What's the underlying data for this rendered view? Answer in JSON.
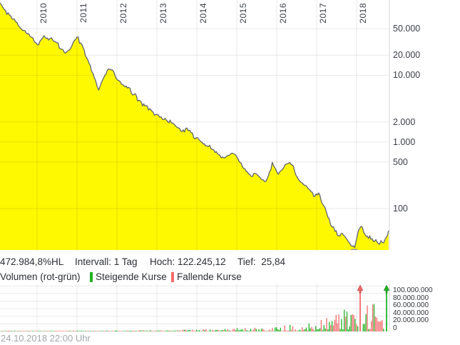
{
  "stats_bar": {
    "range": "472.984,8%HL",
    "interval": "Intervall: 1 Tag",
    "high": "Hoch: 122.245,12",
    "low": "Tief:  25,84"
  },
  "footer": {
    "timestamp": "24.10.2018 22:00 Uhr"
  },
  "chart_data": [
    {
      "type": "area",
      "name": "price",
      "y_scale": "log",
      "x_tick_labels": [
        "2010",
        "2011",
        "2012",
        "2013",
        "2014",
        "2015",
        "2016",
        "2017",
        "2018"
      ],
      "y_ticks": [
        {
          "label": "50.000",
          "value": 50000
        },
        {
          "label": "20.000",
          "value": 20000
        },
        {
          "label": "10.000",
          "value": 10000
        },
        {
          "label": "2.000",
          "value": 2000
        },
        {
          "label": "1.000",
          "value": 1000
        },
        {
          "label": "500",
          "value": 500
        },
        {
          "label": "100",
          "value": 100
        }
      ],
      "high": 122245.12,
      "low": 25.84,
      "interval": "1 Tag",
      "fill_color": "#fef800",
      "line_color": "#60656e",
      "points": [
        [
          2009.07,
          122245
        ],
        [
          2009.21,
          92800
        ],
        [
          2009.34,
          77700
        ],
        [
          2009.46,
          63800
        ],
        [
          2009.57,
          52400
        ],
        [
          2009.7,
          46300
        ],
        [
          2009.82,
          38900
        ],
        [
          2009.93,
          31900
        ],
        [
          2010.0,
          29100
        ],
        [
          2010.11,
          34600
        ],
        [
          2010.2,
          37400
        ],
        [
          2010.29,
          33800
        ],
        [
          2010.36,
          36500
        ],
        [
          2010.46,
          31900
        ],
        [
          2010.59,
          24900
        ],
        [
          2010.71,
          21500
        ],
        [
          2010.8,
          23700
        ],
        [
          2010.91,
          31900
        ],
        [
          2011.0,
          37400
        ],
        [
          2011.09,
          30500
        ],
        [
          2011.18,
          23700
        ],
        [
          2011.3,
          15200
        ],
        [
          2011.43,
          9300
        ],
        [
          2011.54,
          6000
        ],
        [
          2011.66,
          8900
        ],
        [
          2011.79,
          12500
        ],
        [
          2011.89,
          12000
        ],
        [
          2012.02,
          8450
        ],
        [
          2012.14,
          7270
        ],
        [
          2012.29,
          6600
        ],
        [
          2012.43,
          5160
        ],
        [
          2012.55,
          4230
        ],
        [
          2012.7,
          3470
        ],
        [
          2012.82,
          3150
        ],
        [
          2012.91,
          2780
        ],
        [
          2013.0,
          2590
        ],
        [
          2013.14,
          2180
        ],
        [
          2013.27,
          2030
        ],
        [
          2013.36,
          1930
        ],
        [
          2013.5,
          1660
        ],
        [
          2013.63,
          1430
        ],
        [
          2013.75,
          1620
        ],
        [
          2013.86,
          1370
        ],
        [
          2013.98,
          1150
        ],
        [
          2014.13,
          990
        ],
        [
          2014.25,
          875
        ],
        [
          2014.39,
          772
        ],
        [
          2014.52,
          662
        ],
        [
          2014.61,
          575
        ],
        [
          2014.75,
          617
        ],
        [
          2014.88,
          679
        ],
        [
          2014.96,
          646
        ],
        [
          2015.11,
          479
        ],
        [
          2015.23,
          363
        ],
        [
          2015.36,
          304
        ],
        [
          2015.46,
          336
        ],
        [
          2015.59,
          290
        ],
        [
          2015.73,
          256
        ],
        [
          2015.82,
          355
        ],
        [
          2015.89,
          493
        ],
        [
          2015.96,
          404
        ],
        [
          2016.04,
          328
        ],
        [
          2016.13,
          380
        ],
        [
          2016.21,
          454
        ],
        [
          2016.3,
          479
        ],
        [
          2016.39,
          451
        ],
        [
          2016.48,
          317
        ],
        [
          2016.61,
          246
        ],
        [
          2016.79,
          199
        ],
        [
          2016.93,
          151
        ],
        [
          2017.05,
          172
        ],
        [
          2017.14,
          119
        ],
        [
          2017.25,
          86
        ],
        [
          2017.38,
          53
        ],
        [
          2017.46,
          45.5
        ],
        [
          2017.55,
          39.3
        ],
        [
          2017.64,
          42.4
        ],
        [
          2017.73,
          36.4
        ],
        [
          2017.82,
          30.7
        ],
        [
          2017.89,
          27.2
        ],
        [
          2017.95,
          25.84
        ],
        [
          2018.0,
          34.6
        ],
        [
          2018.05,
          47.7
        ],
        [
          2018.11,
          54.1
        ],
        [
          2018.18,
          43.5
        ],
        [
          2018.27,
          38.5
        ],
        [
          2018.36,
          34.6
        ],
        [
          2018.45,
          32.3
        ],
        [
          2018.54,
          30.0
        ],
        [
          2018.61,
          33.1
        ],
        [
          2018.68,
          30.7
        ],
        [
          2018.75,
          37.6
        ],
        [
          2018.8,
          46.6
        ]
      ]
    },
    {
      "type": "bar",
      "name": "volume",
      "legend": {
        "title": "Volumen (rot-grün)",
        "up_label": "Steigende Kurse",
        "down_label": "Fallende Kurse",
        "up_color": "#22b322",
        "down_color": "#f46a6a"
      },
      "y_ticks": [
        {
          "label": "100.000.000",
          "value": 100
        },
        {
          "label": "80.000.000",
          "value": 80
        },
        {
          "label": "60.000.000",
          "value": 60
        },
        {
          "label": "40.000.000",
          "value": 40
        },
        {
          "label": "20.000.000",
          "value": 20
        },
        {
          "label": "0",
          "value": 0
        }
      ],
      "grid_values_millions": [
        0,
        20,
        40,
        60,
        80,
        100,
        120
      ],
      "envelope_millions": [
        [
          2009.1,
          2
        ],
        [
          2012.0,
          2.5
        ],
        [
          2013.0,
          4
        ],
        [
          2014.0,
          6
        ],
        [
          2015.0,
          9
        ],
        [
          2015.8,
          13
        ],
        [
          2016.3,
          18
        ],
        [
          2016.8,
          24
        ],
        [
          2017.0,
          30
        ],
        [
          2017.2,
          40
        ],
        [
          2017.45,
          55
        ],
        [
          2017.6,
          75
        ],
        [
          2017.75,
          62
        ],
        [
          2017.95,
          88
        ],
        [
          2018.1,
          95
        ],
        [
          2018.3,
          82
        ],
        [
          2018.5,
          95
        ],
        [
          2018.65,
          72
        ],
        [
          2018.8,
          105
        ]
      ],
      "clipped_bars": [
        {
          "year": 2018.09,
          "kind": "falling"
        },
        {
          "year": 2018.75,
          "kind": "rising"
        }
      ]
    }
  ]
}
